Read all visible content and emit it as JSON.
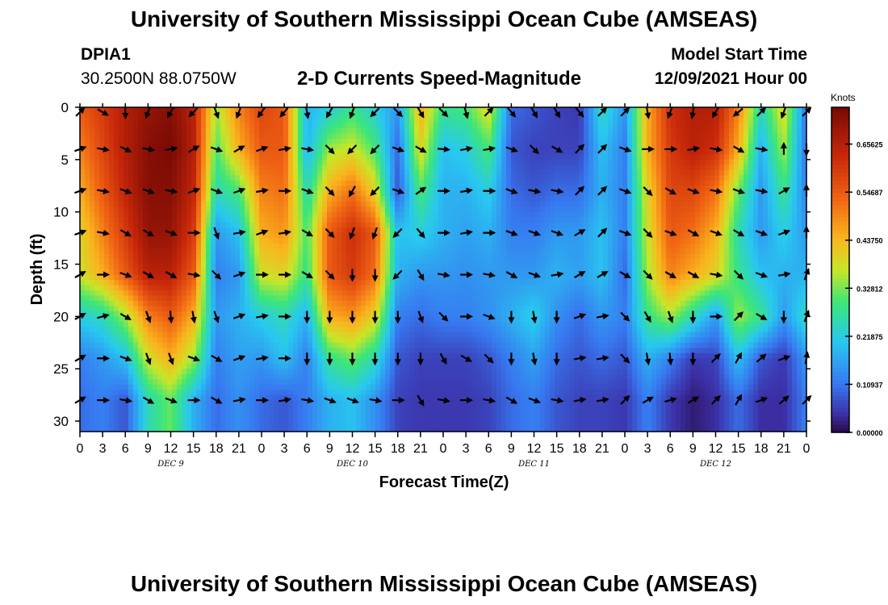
{
  "header": {
    "title": "University of Southern Mississippi Ocean Cube (AMSEAS)",
    "station_id": "DPIA1",
    "station_coords": "30.2500N  88.0750W",
    "plot_title": "2-D Currents Speed-Magnitude",
    "model_start_label": "Model Start Time",
    "model_start_value": "12/09/2021 Hour 00"
  },
  "footer": {
    "title": "University of Southern Mississippi Ocean Cube (AMSEAS)"
  },
  "chart_data": {
    "type": "heatmap",
    "title": "2-D Currents Speed-Magnitude",
    "xlabel": "Forecast Time(Z)",
    "ylabel": "Depth (ft)",
    "ylim": [
      0,
      31
    ],
    "yticks": [
      0,
      5,
      10,
      15,
      20,
      25,
      30
    ],
    "xlim": [
      0,
      96
    ],
    "xtick_labels": [
      "0",
      "3",
      "6",
      "9",
      "12",
      "15",
      "18",
      "21",
      "0",
      "3",
      "6",
      "9",
      "12",
      "15",
      "18",
      "21",
      "0",
      "3",
      "6",
      "9",
      "12",
      "15",
      "18",
      "21",
      "0",
      "3",
      "6",
      "9",
      "12",
      "15",
      "18",
      "21",
      "0"
    ],
    "day_labels": [
      {
        "label": "DEC 9",
        "hour": 12
      },
      {
        "label": "DEC 10",
        "hour": 36
      },
      {
        "label": "DEC 11",
        "hour": 60
      },
      {
        "label": "DEC 12",
        "hour": 84
      }
    ],
    "colorbar": {
      "unit": "Knots",
      "range": [
        0,
        0.74
      ],
      "ticks": [
        "0.00000",
        "0.10937",
        "0.21875",
        "0.32812",
        "0.43750",
        "0.54687",
        "0.65625"
      ],
      "tick_values": [
        0,
        0.10937,
        0.21875,
        0.32812,
        0.4375,
        0.54687,
        0.65625
      ]
    },
    "depths_ft": [
      0,
      4,
      8,
      12,
      16,
      20,
      24,
      28
    ],
    "times_h": [
      0,
      3,
      6,
      9,
      12,
      15,
      18,
      21,
      24,
      27,
      30,
      33,
      36,
      39,
      42,
      45,
      48,
      51,
      54,
      57,
      60,
      63,
      66,
      69,
      72,
      75,
      78,
      81,
      84,
      87,
      90,
      93,
      96
    ],
    "speed_knots": [
      [
        0.55,
        0.6,
        0.66,
        0.7,
        0.72,
        0.65,
        0.35,
        0.5,
        0.58,
        0.55,
        0.18,
        0.22,
        0.28,
        0.22,
        0.15,
        0.45,
        0.28,
        0.3,
        0.4,
        0.1,
        0.08,
        0.06,
        0.05,
        0.25,
        0.15,
        0.45,
        0.62,
        0.66,
        0.66,
        0.5,
        0.25,
        0.4,
        0.1
      ],
      [
        0.5,
        0.58,
        0.66,
        0.72,
        0.74,
        0.66,
        0.3,
        0.45,
        0.55,
        0.55,
        0.18,
        0.35,
        0.38,
        0.3,
        0.1,
        0.4,
        0.2,
        0.22,
        0.3,
        0.08,
        0.06,
        0.06,
        0.06,
        0.2,
        0.12,
        0.45,
        0.6,
        0.65,
        0.62,
        0.45,
        0.18,
        0.35,
        0.1
      ],
      [
        0.45,
        0.55,
        0.64,
        0.72,
        0.72,
        0.64,
        0.25,
        0.3,
        0.5,
        0.52,
        0.25,
        0.45,
        0.52,
        0.4,
        0.08,
        0.3,
        0.18,
        0.18,
        0.22,
        0.1,
        0.08,
        0.1,
        0.1,
        0.18,
        0.12,
        0.4,
        0.58,
        0.58,
        0.52,
        0.32,
        0.15,
        0.28,
        0.12
      ],
      [
        0.4,
        0.5,
        0.6,
        0.7,
        0.7,
        0.6,
        0.15,
        0.2,
        0.45,
        0.48,
        0.3,
        0.55,
        0.62,
        0.55,
        0.2,
        0.22,
        0.18,
        0.16,
        0.18,
        0.12,
        0.12,
        0.15,
        0.15,
        0.2,
        0.12,
        0.38,
        0.55,
        0.52,
        0.45,
        0.25,
        0.15,
        0.22,
        0.15
      ],
      [
        0.38,
        0.45,
        0.55,
        0.65,
        0.65,
        0.55,
        0.12,
        0.15,
        0.38,
        0.4,
        0.28,
        0.55,
        0.6,
        0.52,
        0.18,
        0.15,
        0.15,
        0.14,
        0.15,
        0.15,
        0.15,
        0.18,
        0.16,
        0.2,
        0.1,
        0.35,
        0.5,
        0.45,
        0.4,
        0.28,
        0.2,
        0.18,
        0.18
      ],
      [
        0.22,
        0.25,
        0.35,
        0.5,
        0.55,
        0.45,
        0.15,
        0.18,
        0.22,
        0.25,
        0.18,
        0.45,
        0.48,
        0.4,
        0.12,
        0.1,
        0.12,
        0.12,
        0.14,
        0.18,
        0.22,
        0.14,
        0.1,
        0.15,
        0.12,
        0.28,
        0.35,
        0.25,
        0.15,
        0.35,
        0.28,
        0.15,
        0.25
      ],
      [
        0.12,
        0.15,
        0.2,
        0.38,
        0.45,
        0.35,
        0.12,
        0.16,
        0.15,
        0.2,
        0.12,
        0.28,
        0.32,
        0.25,
        0.08,
        0.06,
        0.06,
        0.06,
        0.08,
        0.12,
        0.16,
        0.1,
        0.08,
        0.1,
        0.08,
        0.18,
        0.12,
        0.05,
        0.06,
        0.2,
        0.08,
        0.05,
        0.15
      ],
      [
        0.1,
        0.12,
        0.08,
        0.25,
        0.32,
        0.18,
        0.1,
        0.14,
        0.1,
        0.08,
        0.12,
        0.18,
        0.2,
        0.14,
        0.06,
        0.05,
        0.05,
        0.05,
        0.06,
        0.1,
        0.12,
        0.08,
        0.06,
        0.06,
        0.05,
        0.12,
        0.05,
        0.02,
        0.04,
        0.1,
        0.04,
        0.04,
        0.12
      ]
    ],
    "direction_deg": [
      [
        45,
        120,
        180,
        200,
        210,
        225,
        160,
        200,
        215,
        220,
        170,
        210,
        200,
        225,
        135,
        150,
        135,
        165,
        45,
        140,
        150,
        150,
        140,
        45,
        45,
        170,
        200,
        190,
        210,
        230,
        45,
        200,
        45
      ],
      [
        70,
        100,
        115,
        100,
        80,
        60,
        110,
        60,
        70,
        80,
        100,
        135,
        225,
        225,
        110,
        120,
        95,
        80,
        80,
        110,
        135,
        120,
        45,
        45,
        110,
        90,
        90,
        80,
        100,
        120,
        100,
        0,
        180
      ],
      [
        70,
        100,
        110,
        110,
        100,
        70,
        110,
        70,
        80,
        90,
        110,
        135,
        210,
        225,
        110,
        55,
        90,
        80,
        90,
        110,
        100,
        100,
        45,
        45,
        110,
        135,
        120,
        110,
        100,
        110,
        100,
        60,
        0
      ],
      [
        70,
        100,
        120,
        120,
        110,
        90,
        160,
        80,
        70,
        80,
        120,
        135,
        200,
        200,
        225,
        140,
        90,
        80,
        90,
        110,
        110,
        110,
        60,
        45,
        110,
        135,
        110,
        120,
        110,
        120,
        110,
        70,
        0
      ],
      [
        60,
        90,
        110,
        120,
        120,
        100,
        135,
        70,
        90,
        90,
        120,
        135,
        180,
        180,
        225,
        150,
        100,
        90,
        100,
        120,
        110,
        80,
        60,
        60,
        120,
        135,
        120,
        120,
        100,
        135,
        110,
        80,
        20
      ],
      [
        60,
        75,
        120,
        160,
        175,
        170,
        160,
        70,
        80,
        90,
        180,
        180,
        180,
        180,
        180,
        160,
        135,
        90,
        110,
        180,
        170,
        180,
        70,
        80,
        135,
        150,
        160,
        180,
        90,
        45,
        120,
        180,
        20
      ],
      [
        60,
        90,
        110,
        160,
        160,
        110,
        120,
        70,
        80,
        90,
        180,
        180,
        180,
        180,
        180,
        180,
        150,
        120,
        135,
        180,
        170,
        180,
        80,
        80,
        135,
        170,
        175,
        180,
        45,
        30,
        50,
        70,
        10
      ],
      [
        60,
        90,
        100,
        120,
        110,
        90,
        120,
        80,
        90,
        80,
        100,
        110,
        110,
        100,
        90,
        150,
        100,
        90,
        100,
        120,
        110,
        100,
        80,
        80,
        45,
        60,
        75,
        60,
        45,
        30,
        70,
        50,
        45
      ]
    ]
  }
}
